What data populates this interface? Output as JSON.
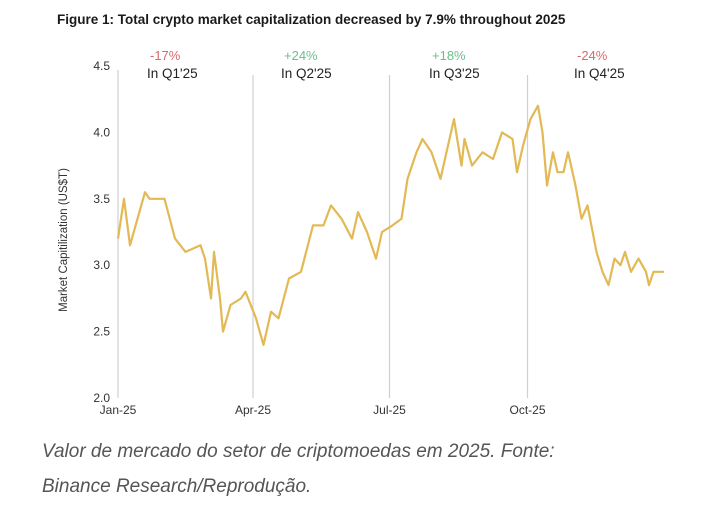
{
  "chart_data": {
    "type": "line",
    "title": "Figure 1: Total crypto market capitalization decreased by 7.9% throughout 2025",
    "ylabel": "Market Capitilization (US$T)",
    "xlabel": "",
    "ylim": [
      2.0,
      4.5
    ],
    "xlim": [
      "2025-01-01",
      "2025-12-31"
    ],
    "yticks": [
      "2.0",
      "2.5",
      "3.0",
      "3.5",
      "4.0",
      "4.5"
    ],
    "xticks": [
      {
        "date": "2025-01-01",
        "label": "Jan-25"
      },
      {
        "date": "2025-04-01",
        "label": "Apr-25"
      },
      {
        "date": "2025-07-01",
        "label": "Jul-25"
      },
      {
        "date": "2025-10-01",
        "label": "Oct-25"
      }
    ],
    "grid": false,
    "line_color": "#e2b955",
    "annotations": [
      {
        "change": "-17%",
        "label": "In Q1'25",
        "color": "#d9696a"
      },
      {
        "change": "+24%",
        "label": "In Q2'25",
        "color": "#6cbf8c"
      },
      {
        "change": "+18%",
        "label": "In Q3'25",
        "color": "#6cbf8c"
      },
      {
        "change": "-24%",
        "label": "In Q4'25",
        "color": "#d9696a"
      }
    ],
    "series": [
      {
        "x": [
          "2025-01-01",
          "2025-01-05",
          "2025-01-09",
          "2025-01-19",
          "2025-01-22",
          "2025-02-01",
          "2025-02-08",
          "2025-02-15",
          "2025-02-25",
          "2025-02-28",
          "2025-03-04",
          "2025-03-06",
          "2025-03-10",
          "2025-03-12",
          "2025-03-17",
          "2025-03-24",
          "2025-03-27",
          "2025-04-03",
          "2025-04-08",
          "2025-04-13",
          "2025-04-18",
          "2025-04-25",
          "2025-05-03",
          "2025-05-11",
          "2025-05-18",
          "2025-05-23",
          "2025-05-30",
          "2025-06-06",
          "2025-06-10",
          "2025-06-16",
          "2025-06-22",
          "2025-06-26",
          "2025-07-03",
          "2025-07-09",
          "2025-07-13",
          "2025-07-19",
          "2025-07-23",
          "2025-07-29",
          "2025-08-04",
          "2025-08-08",
          "2025-08-13",
          "2025-08-18",
          "2025-08-20",
          "2025-08-25",
          "2025-09-01",
          "2025-09-08",
          "2025-09-14",
          "2025-09-21",
          "2025-09-24",
          "2025-09-28",
          "2025-10-03",
          "2025-10-08",
          "2025-10-11",
          "2025-10-14",
          "2025-10-18",
          "2025-10-21",
          "2025-10-25",
          "2025-10-28",
          "2025-11-02",
          "2025-11-06",
          "2025-11-10",
          "2025-11-16",
          "2025-11-20",
          "2025-11-24",
          "2025-11-28",
          "2025-12-02",
          "2025-12-05",
          "2025-12-09",
          "2025-12-14",
          "2025-12-19",
          "2025-12-21",
          "2025-12-24",
          "2025-12-31"
        ],
        "y": [
          3.2,
          3.5,
          3.15,
          3.55,
          3.5,
          3.5,
          3.2,
          3.1,
          3.15,
          3.05,
          2.75,
          3.1,
          2.75,
          2.5,
          2.7,
          2.75,
          2.8,
          2.6,
          2.4,
          2.65,
          2.6,
          2.9,
          2.95,
          3.3,
          3.3,
          3.45,
          3.35,
          3.2,
          3.4,
          3.25,
          3.05,
          3.25,
          3.3,
          3.35,
          3.65,
          3.85,
          3.95,
          3.85,
          3.65,
          3.85,
          4.1,
          3.75,
          3.95,
          3.75,
          3.85,
          3.8,
          4.0,
          3.95,
          3.7,
          3.9,
          4.1,
          4.2,
          4.0,
          3.6,
          3.85,
          3.7,
          3.7,
          3.85,
          3.6,
          3.35,
          3.45,
          3.1,
          2.95,
          2.85,
          3.05,
          3.0,
          3.1,
          2.95,
          3.05,
          2.95,
          2.85,
          2.95,
          2.95
        ]
      }
    ]
  },
  "caption": {
    "line1": "Valor de mercado do setor de criptomoedas em 2025. Fonte:",
    "line2": "Binance Research/Reprodução."
  }
}
